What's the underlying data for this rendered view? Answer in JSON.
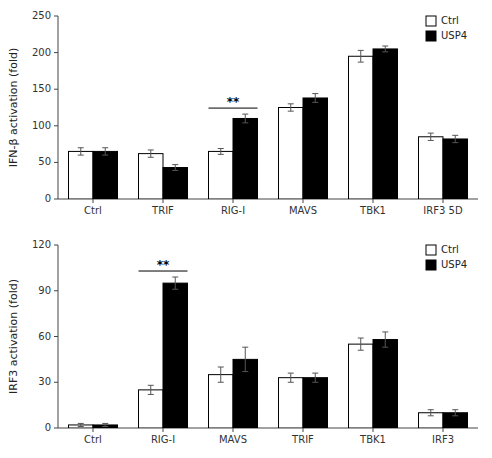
{
  "chart_data": [
    {
      "type": "bar",
      "categories": [
        "Ctrl",
        "TRIF",
        "RIG-I",
        "MAVS",
        "TBK1",
        "IRF3 5D"
      ],
      "series": [
        {
          "name": "Ctrl",
          "color": "#ffffff",
          "values": [
            65,
            62,
            65,
            125,
            195,
            85
          ],
          "errors": [
            5,
            5,
            4,
            5,
            8,
            5
          ]
        },
        {
          "name": "USP4",
          "color": "#000000",
          "values": [
            65,
            43,
            110,
            138,
            205,
            82
          ],
          "errors": [
            5,
            4,
            6,
            6,
            4,
            5
          ]
        }
      ],
      "y_label": "IFN-β activation (fold)",
      "ylim": [
        0,
        250
      ],
      "yticks": [
        0,
        50,
        100,
        150,
        200,
        250
      ],
      "annotations": [
        {
          "text": "**",
          "category": "RIG-I"
        }
      ],
      "legend": "upper right",
      "grid": false
    },
    {
      "type": "bar",
      "categories": [
        "Ctrl",
        "RIG-I",
        "MAVS",
        "TRIF",
        "TBK1",
        "IRF3"
      ],
      "series": [
        {
          "name": "Ctrl",
          "color": "#ffffff",
          "values": [
            2,
            25,
            35,
            33,
            55,
            10
          ],
          "errors": [
            1,
            3,
            5,
            3,
            4,
            2
          ]
        },
        {
          "name": "USP4",
          "color": "#000000",
          "values": [
            2,
            95,
            45,
            33,
            58,
            10
          ],
          "errors": [
            1,
            4,
            8,
            3,
            5,
            2
          ]
        }
      ],
      "y_label": "IRF3 activation (fold)",
      "ylim": [
        0,
        120
      ],
      "yticks": [
        0,
        30,
        60,
        90,
        120
      ],
      "annotations": [
        {
          "text": "**",
          "category": "RIG-I"
        }
      ],
      "legend": "upper right",
      "grid": false
    }
  ]
}
